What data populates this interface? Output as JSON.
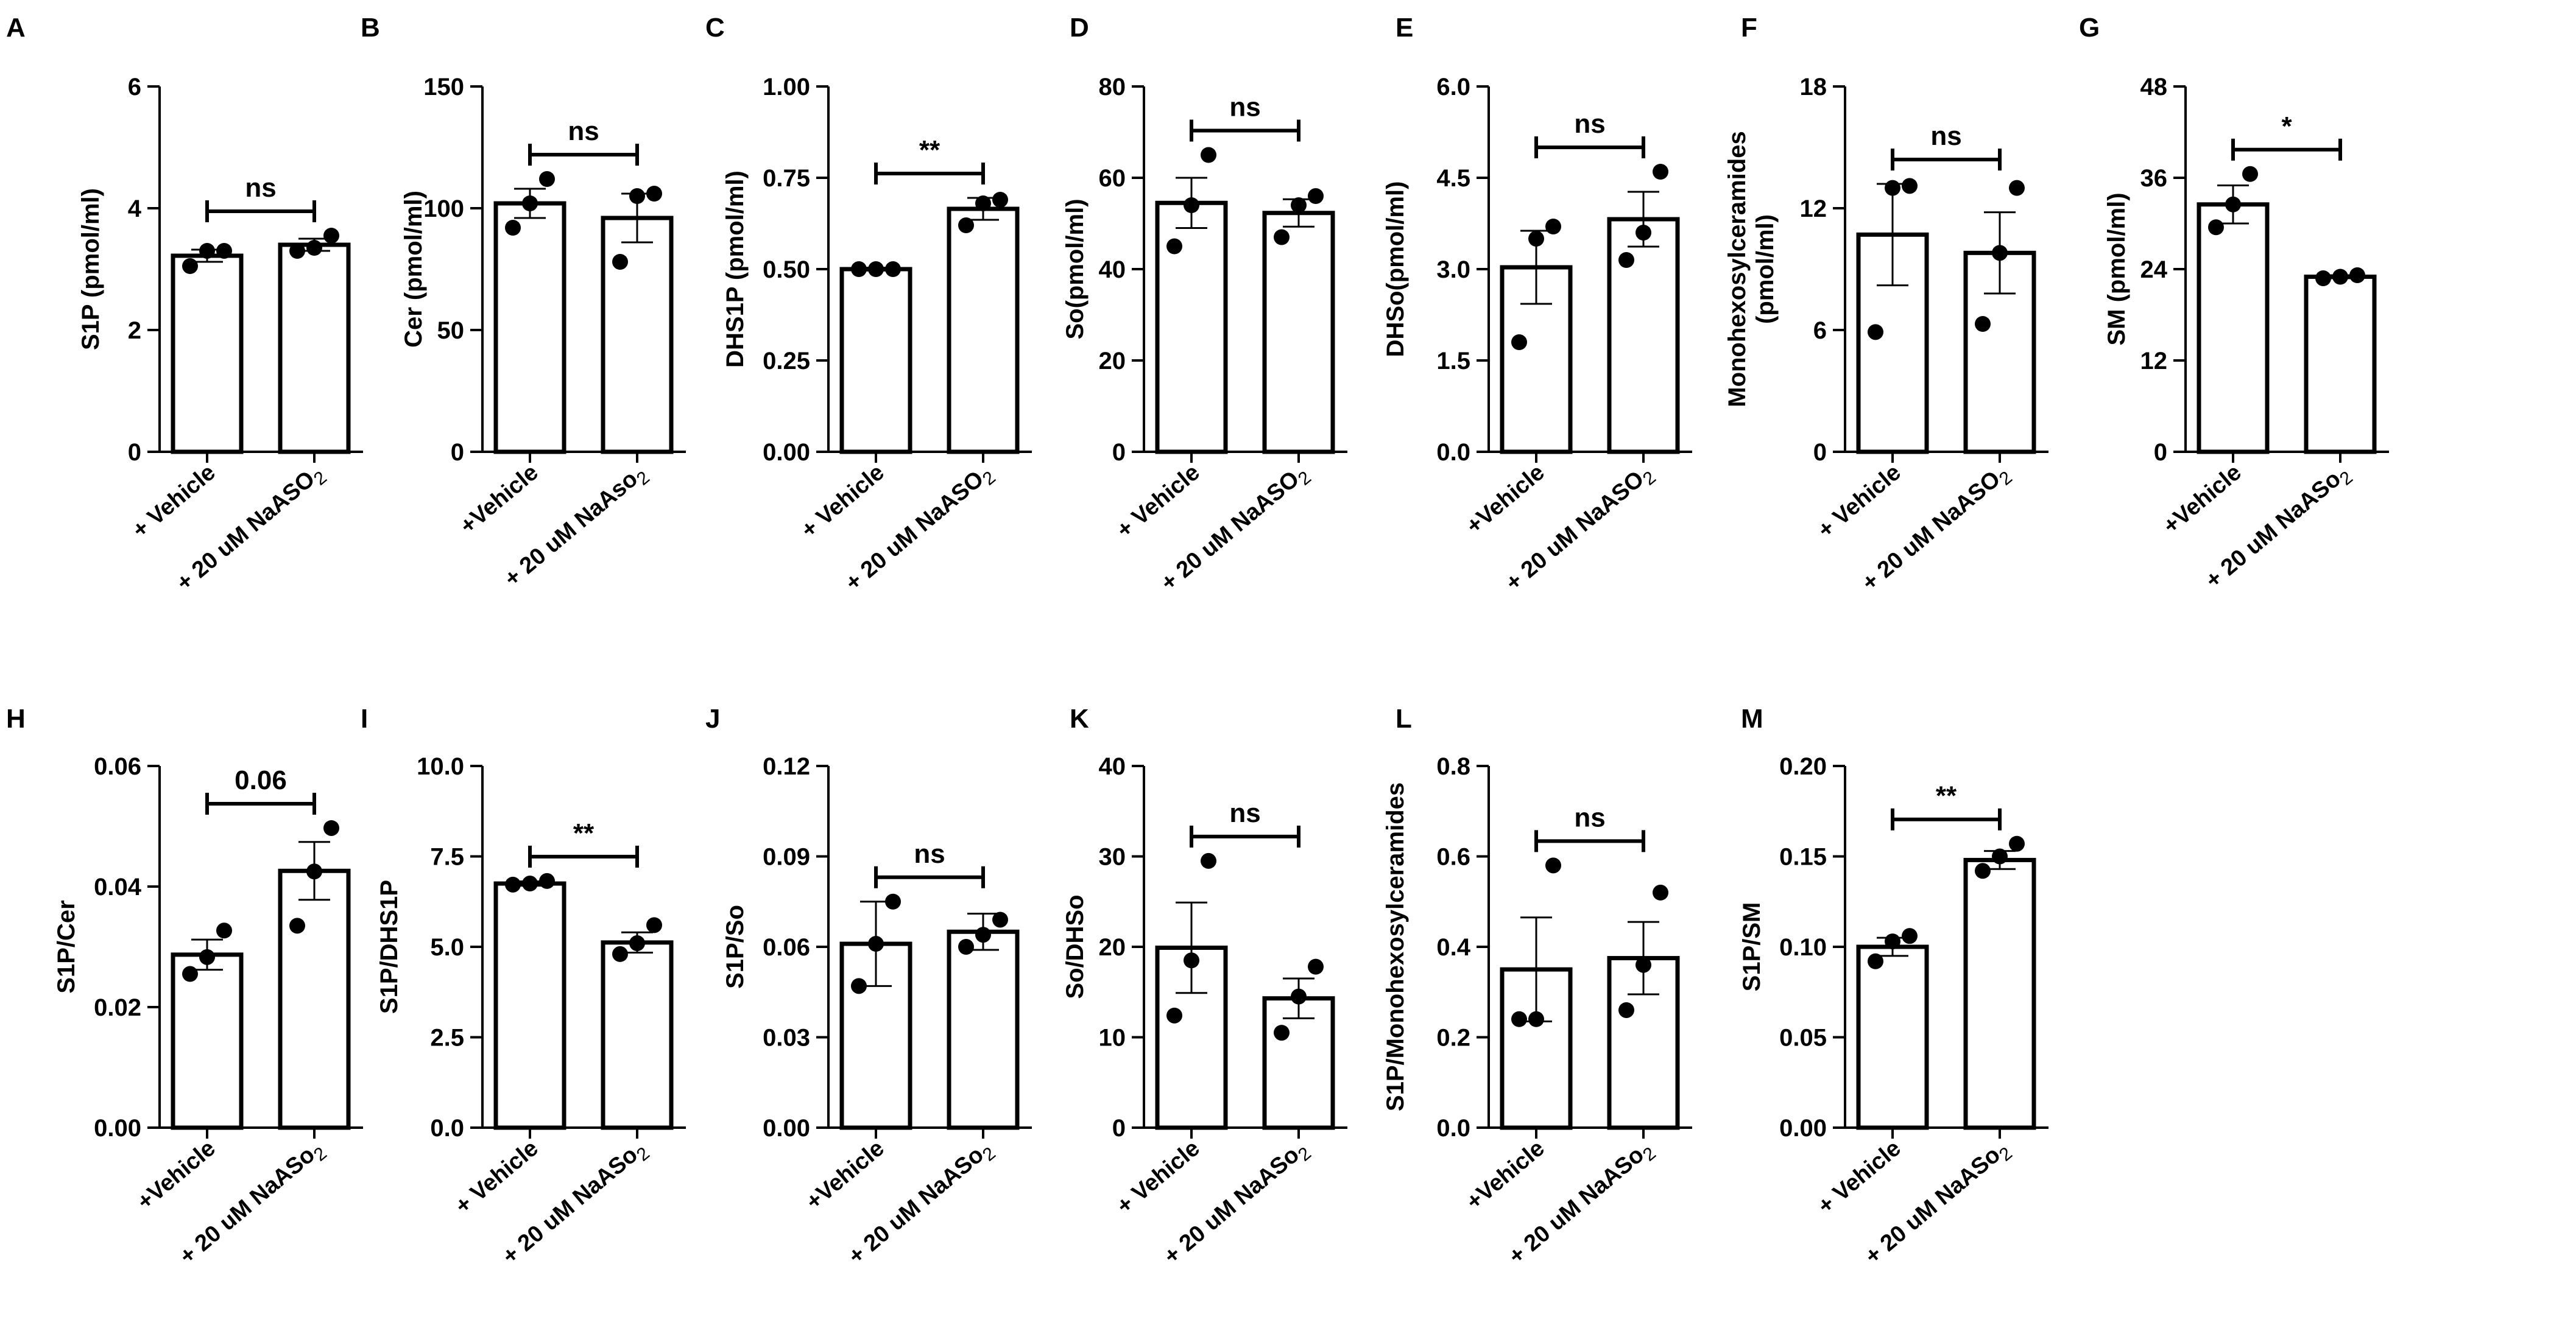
{
  "figure": {
    "background": "#ffffff",
    "stroke_color": "#000000"
  },
  "chart_data": [
    {
      "letter": "A",
      "type": "bar",
      "ylabel": [
        "S1P (pmol/ml)"
      ],
      "ylim": [
        0,
        6
      ],
      "yticks": [
        "0",
        "2",
        "4",
        "6"
      ],
      "categories": [
        {
          "main": "+ Vehicle"
        },
        {
          "main": "+ 20 uM NaASO",
          "sub": "2"
        }
      ],
      "values": [
        3.22,
        3.4
      ],
      "errors": [
        0.1,
        0.1
      ],
      "points": [
        [
          3.05,
          3.3,
          3.3
        ],
        [
          3.3,
          3.35,
          3.55
        ]
      ],
      "significance": "ns"
    },
    {
      "letter": "B",
      "type": "bar",
      "ylabel": [
        "Cer (pmol/ml)"
      ],
      "ylim": [
        0,
        150
      ],
      "yticks": [
        "0",
        "50",
        "100",
        "150"
      ],
      "categories": [
        {
          "main": "+Vehicle"
        },
        {
          "main": "+ 20 uM NaAso",
          "sub": "2"
        }
      ],
      "values": [
        102,
        96
      ],
      "errors": [
        6,
        10
      ],
      "points": [
        [
          92,
          102,
          112
        ],
        [
          78,
          105,
          106
        ]
      ],
      "significance": "ns"
    },
    {
      "letter": "C",
      "type": "bar",
      "ylabel": [
        "DHS1P (pmol/ml)"
      ],
      "ylim": [
        0,
        1
      ],
      "yticks": [
        "0.00",
        "0.25",
        "0.50",
        "0.75",
        "1.00"
      ],
      "categories": [
        {
          "main": "+ Vehicle"
        },
        {
          "main": "+ 20 uM NaASO",
          "sub": "2"
        }
      ],
      "values": [
        0.5,
        0.665
      ],
      "errors": [
        0.004,
        0.03
      ],
      "points": [
        [
          0.5,
          0.5,
          0.5
        ],
        [
          0.62,
          0.68,
          0.69
        ]
      ],
      "significance": "**"
    },
    {
      "letter": "D",
      "type": "bar",
      "ylabel": [
        "So(pmol/ml)"
      ],
      "ylim": [
        0,
        80
      ],
      "yticks": [
        "0",
        "20",
        "40",
        "60",
        "80"
      ],
      "categories": [
        {
          "main": "+ Vehicle"
        },
        {
          "main": "+ 20 uM NaASO",
          "sub": "2"
        }
      ],
      "values": [
        54.5,
        52.3
      ],
      "errors": [
        5.5,
        3.0
      ],
      "points": [
        [
          45,
          54,
          65
        ],
        [
          47,
          54,
          56
        ]
      ],
      "significance": "ns"
    },
    {
      "letter": "E",
      "type": "bar",
      "ylabel": [
        "DHSo(pmol/ml)"
      ],
      "ylim": [
        0,
        6
      ],
      "yticks": [
        "0.0",
        "1.5",
        "3.0",
        "4.5",
        "6.0"
      ],
      "categories": [
        {
          "main": "+Vehicle"
        },
        {
          "main": "+ 20 uM NaASO",
          "sub": "2"
        }
      ],
      "values": [
        3.03,
        3.82
      ],
      "errors": [
        0.6,
        0.45
      ],
      "points": [
        [
          1.8,
          3.5,
          3.7
        ],
        [
          3.15,
          3.6,
          4.6
        ]
      ],
      "significance": "ns"
    },
    {
      "letter": "F",
      "type": "bar",
      "ylabel": [
        "Monohexosylceramides",
        "(pmol/ml)"
      ],
      "ylim": [
        0,
        18
      ],
      "yticks": [
        "0",
        "6",
        "12",
        "18"
      ],
      "categories": [
        {
          "main": "+ Vehicle"
        },
        {
          "main": "+ 20 uM NaASO",
          "sub": "2"
        }
      ],
      "values": [
        10.7,
        9.8
      ],
      "errors": [
        2.5,
        2.0
      ],
      "points": [
        [
          5.9,
          13.0,
          13.1
        ],
        [
          6.3,
          9.8,
          13.0
        ]
      ],
      "significance": "ns"
    },
    {
      "letter": "G",
      "type": "bar",
      "ylabel": [
        "SM (pmol/ml)"
      ],
      "ylim": [
        0,
        48
      ],
      "yticks": [
        "0",
        "12",
        "24",
        "36",
        "48"
      ],
      "categories": [
        {
          "main": "+Vehicle"
        },
        {
          "main": "+ 20 uM NaASo",
          "sub": "2"
        }
      ],
      "values": [
        32.5,
        23.0
      ],
      "errors": [
        2.5,
        0.2
      ],
      "points": [
        [
          29.5,
          32.5,
          36.5
        ],
        [
          22.8,
          23.0,
          23.2
        ]
      ],
      "significance": "*"
    },
    {
      "letter": "H",
      "type": "bar",
      "ylabel": [
        "S1P/Cer"
      ],
      "ylim": [
        0,
        0.06
      ],
      "yticks": [
        "0.00",
        "0.02",
        "0.04",
        "0.06"
      ],
      "categories": [
        {
          "main": "+Vehicle"
        },
        {
          "main": "+ 20 uM NaASo",
          "sub": "2"
        }
      ],
      "values": [
        0.0287,
        0.0426
      ],
      "errors": [
        0.0025,
        0.0048
      ],
      "points": [
        [
          0.0255,
          0.0283,
          0.0327
        ],
        [
          0.0335,
          0.0425,
          0.0497
        ]
      ],
      "significance": "0.06"
    },
    {
      "letter": "I",
      "type": "bar",
      "ylabel": [
        "S1P/DHS1P"
      ],
      "ylim": [
        0,
        10
      ],
      "yticks": [
        "0.0",
        "2.5",
        "5.0",
        "7.5",
        "10.0"
      ],
      "categories": [
        {
          "main": "+ Vehicle"
        },
        {
          "main": "+ 20 uM NaASo",
          "sub": "2"
        }
      ],
      "values": [
        6.75,
        5.12
      ],
      "errors": [
        0.06,
        0.28
      ],
      "points": [
        [
          6.72,
          6.75,
          6.82
        ],
        [
          4.8,
          5.1,
          5.6
        ]
      ],
      "significance": "**"
    },
    {
      "letter": "J",
      "type": "bar",
      "ylabel": [
        "S1P/So"
      ],
      "ylim": [
        0,
        0.12
      ],
      "yticks": [
        "0.00",
        "0.03",
        "0.06",
        "0.09",
        "0.12"
      ],
      "categories": [
        {
          "main": "+Vehicle"
        },
        {
          "main": "+ 20 uM NaASo",
          "sub": "2"
        }
      ],
      "values": [
        0.061,
        0.065
      ],
      "errors": [
        0.014,
        0.006
      ],
      "points": [
        [
          0.047,
          0.061,
          0.075
        ],
        [
          0.06,
          0.064,
          0.069
        ]
      ],
      "significance": "ns"
    },
    {
      "letter": "K",
      "type": "bar",
      "ylabel": [
        "So/DHSo"
      ],
      "ylim": [
        0,
        40
      ],
      "yticks": [
        "0",
        "10",
        "20",
        "30",
        "40"
      ],
      "categories": [
        {
          "main": "+ Vehicle"
        },
        {
          "main": "+ 20 uM NaASo",
          "sub": "2"
        }
      ],
      "values": [
        19.9,
        14.3
      ],
      "errors": [
        5.0,
        2.2
      ],
      "points": [
        [
          12.4,
          18.5,
          29.5
        ],
        [
          10.5,
          14.5,
          17.8
        ]
      ],
      "significance": "ns"
    },
    {
      "letter": "L",
      "type": "bar",
      "ylabel": [
        "S1P/Monohexosylceramides"
      ],
      "ylim": [
        0,
        0.8
      ],
      "yticks": [
        "0.0",
        "0.2",
        "0.4",
        "0.6",
        "0.8"
      ],
      "categories": [
        {
          "main": "+Vehicle"
        },
        {
          "main": "+ 20 uM NaASo",
          "sub": "2"
        }
      ],
      "values": [
        0.35,
        0.375
      ],
      "errors": [
        0.115,
        0.08
      ],
      "points": [
        [
          0.24,
          0.24,
          0.58
        ],
        [
          0.26,
          0.36,
          0.52
        ]
      ],
      "significance": "ns"
    },
    {
      "letter": "M",
      "type": "bar",
      "ylabel": [
        "S1P/SM"
      ],
      "ylim": [
        0,
        0.2
      ],
      "yticks": [
        "0.00",
        "0.05",
        "0.10",
        "0.15",
        "0.20"
      ],
      "categories": [
        {
          "main": "+ Vehicle"
        },
        {
          "main": "+ 20 uM NaASo",
          "sub": "2"
        }
      ],
      "values": [
        0.1,
        0.148
      ],
      "errors": [
        0.005,
        0.005
      ],
      "points": [
        [
          0.092,
          0.103,
          0.106
        ],
        [
          0.142,
          0.15,
          0.157
        ]
      ],
      "significance": "**"
    }
  ]
}
